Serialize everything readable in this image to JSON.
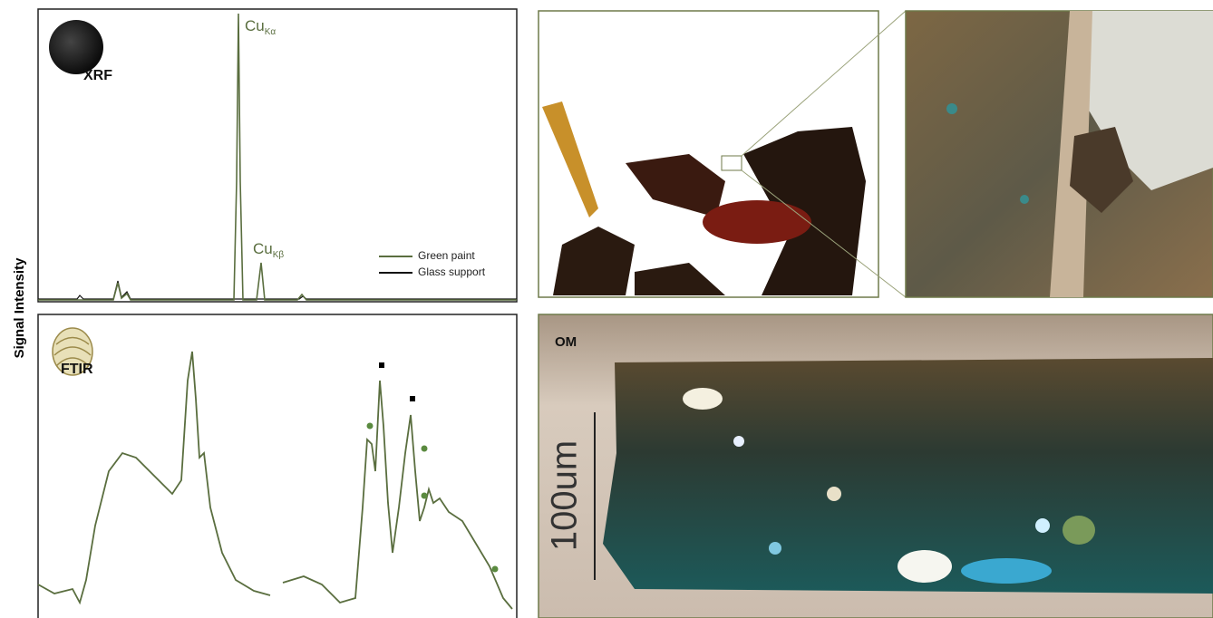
{
  "y_label": "Signal Intensity",
  "xrf": {
    "label": "XRF",
    "peaks": [
      {
        "element": "Cu",
        "line": "Kα"
      },
      {
        "element": "Cu",
        "line": "Kβ"
      }
    ],
    "legend": [
      "Green paint",
      "Glass support"
    ]
  },
  "ftir": {
    "label": "FTIR"
  },
  "om": {
    "label": "OM",
    "scale_bar": "100um"
  }
}
